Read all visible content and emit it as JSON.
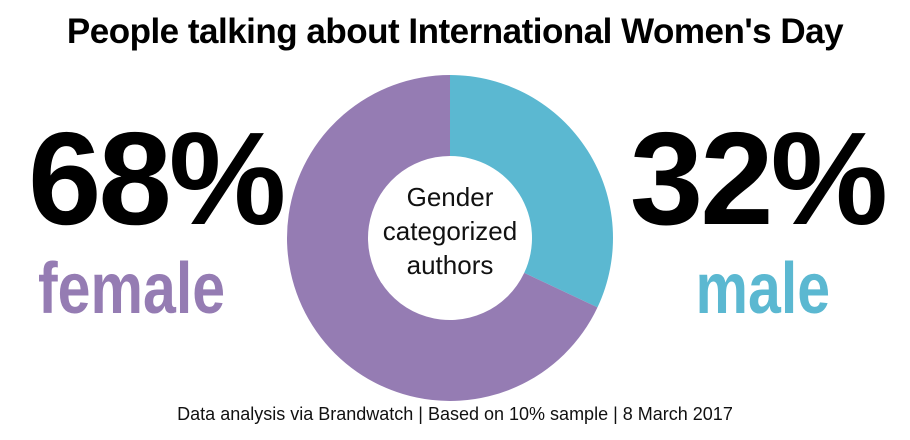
{
  "title": "People talking about International Women's Day",
  "colors": {
    "female": "#957cb3",
    "male": "#5bb8d1",
    "text": "#000000"
  },
  "chart_data": {
    "type": "pie",
    "donut": true,
    "center_label": "Gender categorized authors",
    "center_lines": [
      "Gender",
      "categorized",
      "authors"
    ],
    "categories": [
      "female",
      "male"
    ],
    "values": [
      68,
      32
    ],
    "value_labels": [
      "68%",
      "32%"
    ],
    "colors": [
      "#957cb3",
      "#5bb8d1"
    ]
  },
  "footer": "Data analysis via Brandwatch | Based on 10% sample | 8 March 2017"
}
